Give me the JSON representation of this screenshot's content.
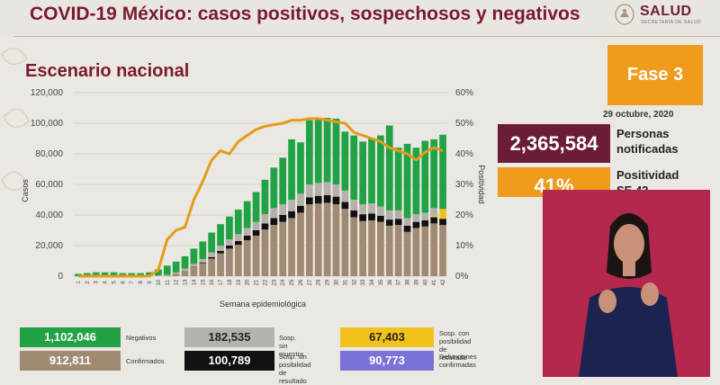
{
  "header": {
    "title": "COVID-19 México: casos positivos, sospechosos y negativos",
    "logo_text": "SALUD",
    "logo_sub": "SECRETARÍA DE SALUD"
  },
  "subtitle": "Escenario nacional",
  "phase": {
    "label": "Fase 3",
    "date": "29 octubre, 2020"
  },
  "stats": {
    "personas_value": "2,365,584",
    "personas_label_1": "Personas",
    "personas_label_2": "notificadas",
    "positividad_value": "41%",
    "positividad_label_1": "Positividad",
    "positividad_label_2": "SE 42"
  },
  "legend": {
    "negativos_value": "1,102,046",
    "negativos_label": "Negativos",
    "confirmados_value": "912,811",
    "confirmados_label": "Confirmados",
    "sosp_sin_muestra_value": "182,535",
    "sosp_sin_muestra_label": "Sosp. sin muestra",
    "sosp_sin_pos_value": "100,789",
    "sosp_sin_pos_label_1": "Sosp. sin posibilidad",
    "sosp_sin_pos_label_2": "de resultado",
    "sosp_con_pos_value": "67,403",
    "sosp_con_pos_label_1": "Sosp. con posibilidad",
    "sosp_con_pos_label_2": "de resultado",
    "defunciones_value": "90,773",
    "defunciones_label_1": "Defunciones",
    "defunciones_label_2": "confirmadas"
  },
  "colors": {
    "negativos": "#21a345",
    "sin_muestra": "#b5b1ac",
    "sin_posibilidad": "#111111",
    "con_posibilidad": "#f1c21b",
    "confirmados": "#a08a72",
    "defunciones": "#7a72d8",
    "positividad_line": "#e39b1c",
    "brand": "#7a1a2e"
  },
  "chart_data": {
    "type": "bar",
    "title": "",
    "xlabel": "Semana epidemiológica",
    "ylabel": "Casos",
    "y2label": "Positividad",
    "ylim": [
      0,
      120000
    ],
    "y2lim": [
      0,
      60
    ],
    "yticks": [
      "0",
      "20,000",
      "40,000",
      "60,000",
      "80,000",
      "100,000",
      "120,000"
    ],
    "y2ticks": [
      "0%",
      "10%",
      "20%",
      "30%",
      "40%",
      "50%",
      "60%"
    ],
    "categories": [
      "1",
      "2",
      "3",
      "4",
      "5",
      "6",
      "7",
      "8",
      "9",
      "10",
      "11",
      "12",
      "13",
      "14",
      "15",
      "16",
      "17",
      "18",
      "19",
      "20",
      "21",
      "22",
      "23",
      "24",
      "25",
      "26",
      "27",
      "28",
      "29",
      "30",
      "31",
      "32",
      "33",
      "34",
      "35",
      "36",
      "37",
      "38",
      "39",
      "40",
      "41",
      "42"
    ],
    "stacked": true,
    "series": [
      {
        "name": "Confirmados",
        "values": [
          0,
          0,
          0,
          0,
          0,
          0,
          0,
          0,
          0,
          100,
          400,
          1500,
          3500,
          6000,
          8500,
          11500,
          15000,
          18000,
          20500,
          23500,
          26500,
          30500,
          33500,
          35500,
          38000,
          41500,
          47000,
          47500,
          48000,
          47000,
          44000,
          38500,
          36000,
          36500,
          35500,
          33000,
          33500,
          29000,
          31500,
          32500,
          34500,
          33500
        ]
      },
      {
        "name": "Sosp. sin posibilidad de resultado",
        "values": [
          0,
          0,
          0,
          0,
          0,
          0,
          0,
          0,
          0,
          0,
          0,
          0,
          0,
          200,
          500,
          1000,
          1500,
          2000,
          2500,
          3000,
          3500,
          4000,
          4500,
          4500,
          4500,
          4500,
          4500,
          5000,
          5000,
          5000,
          4500,
          4500,
          4500,
          4500,
          4000,
          4000,
          4000,
          4000,
          4000,
          4000,
          4000,
          4000
        ]
      },
      {
        "name": "Sosp. con posibilidad de resultado",
        "values": [
          0,
          0,
          0,
          0,
          0,
          0,
          0,
          0,
          0,
          0,
          0,
          0,
          0,
          0,
          0,
          0,
          0,
          0,
          0,
          0,
          0,
          0,
          0,
          0,
          0,
          0,
          0,
          0,
          0,
          0,
          0,
          0,
          0,
          0,
          0,
          0,
          0,
          0,
          0,
          0,
          1000,
          6500
        ]
      },
      {
        "name": "Sosp. sin muestra",
        "values": [
          0,
          0,
          0,
          0,
          0,
          0,
          0,
          0,
          0,
          300,
          500,
          1000,
          1500,
          1800,
          2200,
          3000,
          3500,
          4000,
          4500,
          5000,
          5500,
          6000,
          6500,
          7000,
          7500,
          8000,
          8500,
          8500,
          8500,
          8000,
          7500,
          7000,
          6500,
          6500,
          6000,
          6000,
          5500,
          5000,
          5000,
          5000,
          5000,
          0
        ]
      },
      {
        "name": "Negativos",
        "values": [
          1500,
          2000,
          2500,
          2500,
          2500,
          2000,
          2000,
          2000,
          2500,
          4000,
          6000,
          7000,
          8000,
          10000,
          11500,
          13000,
          14000,
          15000,
          16000,
          17500,
          19500,
          22500,
          26500,
          30500,
          39500,
          33500,
          42000,
          42000,
          42000,
          43000,
          38500,
          42000,
          41000,
          42500,
          46500,
          55500,
          41000,
          48500,
          43500,
          47000,
          45000,
          48500
        ]
      },
      {
        "name": "Positividad",
        "axis": "y2",
        "values": [
          0,
          0,
          0,
          0,
          0,
          0,
          0,
          0,
          0,
          2,
          12,
          15,
          16,
          25,
          31,
          38,
          41,
          40,
          44,
          46,
          48,
          49,
          49.5,
          50,
          51,
          51,
          51.5,
          51.5,
          51,
          50.5,
          50,
          47,
          46,
          45,
          44,
          42,
          41,
          40,
          38,
          40.5,
          42,
          41
        ]
      }
    ]
  }
}
